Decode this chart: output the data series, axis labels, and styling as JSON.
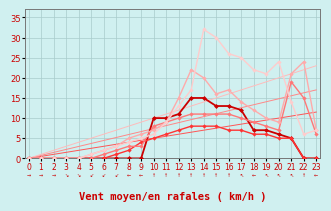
{
  "background_color": "#d0f0f0",
  "grid_color": "#a8cccc",
  "x_labels": [
    0,
    1,
    2,
    3,
    4,
    5,
    6,
    7,
    8,
    9,
    10,
    11,
    12,
    13,
    14,
    15,
    16,
    17,
    18,
    19,
    20,
    21,
    22,
    23
  ],
  "xlabel": "Vent moyen/en rafales ( km/h )",
  "yticks": [
    0,
    5,
    10,
    15,
    20,
    25,
    30,
    35
  ],
  "ylim": [
    0,
    37
  ],
  "xlim": [
    -0.3,
    23.3
  ],
  "series": [
    {
      "color": "#cc0000",
      "lw": 1.3,
      "marker": "D",
      "ms": 2.5,
      "y": [
        0,
        0,
        0,
        0,
        0,
        0,
        0,
        0,
        0,
        0,
        10,
        10,
        11,
        15,
        15,
        13,
        13,
        12,
        7,
        7,
        6,
        5,
        0,
        0
      ]
    },
    {
      "color": "#ff3333",
      "lw": 1.0,
      "marker": "D",
      "ms": 2.2,
      "y": [
        0,
        0,
        0,
        0,
        0,
        0,
        0,
        1,
        2,
        4,
        5,
        6,
        7,
        8,
        8,
        8,
        7,
        7,
        6,
        6,
        5,
        5,
        0,
        0
      ]
    },
    {
      "color": "#ff7777",
      "lw": 1.0,
      "marker": "D",
      "ms": 2.2,
      "y": [
        0,
        0,
        0,
        0,
        0,
        0,
        1,
        2,
        3,
        3,
        8,
        9,
        10,
        11,
        11,
        11,
        11,
        10,
        9,
        8,
        7,
        19,
        15,
        6
      ]
    },
    {
      "color": "#ffaaaa",
      "lw": 1.0,
      "marker": "D",
      "ms": 2.2,
      "y": [
        0,
        0,
        0,
        0,
        0,
        1,
        2,
        3,
        5,
        6,
        7,
        9,
        15,
        22,
        20,
        16,
        17,
        14,
        12,
        10,
        9,
        21,
        24,
        7
      ]
    },
    {
      "color": "#ffcccc",
      "lw": 1.0,
      "marker": "D",
      "ms": 2.2,
      "y": [
        0,
        0,
        0,
        0,
        0,
        1,
        2,
        3,
        4,
        5,
        6,
        9,
        13,
        17,
        32,
        30,
        26,
        25,
        22,
        21,
        24,
        14,
        6,
        7
      ]
    },
    {
      "color": "#ff5555",
      "lw": 0.7,
      "marker": null,
      "ms": 0,
      "y": [
        0,
        0.5,
        1.0,
        1.5,
        2.0,
        2.5,
        3.0,
        3.5,
        4.0,
        4.5,
        5.0,
        5.5,
        6.0,
        6.5,
        7.0,
        7.5,
        8.0,
        8.5,
        9.0,
        9.5,
        10.0,
        10.5,
        11.0,
        11.5
      ]
    },
    {
      "color": "#ff8888",
      "lw": 0.7,
      "marker": null,
      "ms": 0,
      "y": [
        0,
        0.74,
        1.48,
        2.22,
        2.96,
        3.7,
        4.44,
        5.18,
        5.92,
        6.66,
        7.4,
        8.14,
        8.88,
        9.62,
        10.36,
        11.1,
        11.84,
        12.58,
        13.32,
        14.06,
        14.8,
        15.54,
        16.28,
        17.0
      ]
    },
    {
      "color": "#ffbbbb",
      "lw": 0.7,
      "marker": null,
      "ms": 0,
      "y": [
        0,
        1,
        2,
        3,
        4,
        5,
        6,
        7,
        8,
        9,
        10,
        11,
        12,
        13,
        14,
        15,
        16,
        17,
        18,
        19,
        20,
        21,
        22,
        23
      ]
    }
  ],
  "arrow_row": [
    "→",
    "→",
    "→",
    "↘",
    "↘",
    "↙",
    "↙",
    "↙",
    "←",
    "←",
    "↑",
    "↑",
    "↑",
    "↑",
    "↑",
    "↑",
    "↑",
    "↖",
    "←",
    "↖",
    "↖",
    "↖",
    "↑",
    "←"
  ],
  "tick_fontsize": 5.5,
  "axis_label_fontsize": 7.5
}
